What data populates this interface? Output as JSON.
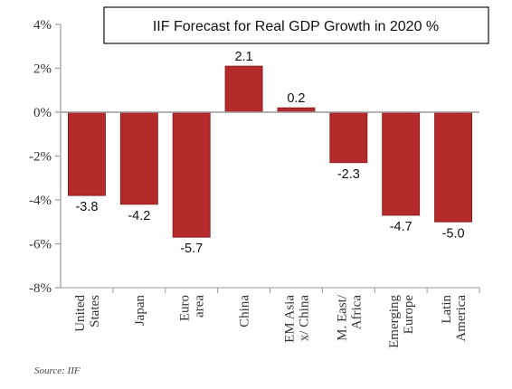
{
  "chart_data": {
    "type": "bar",
    "title": "IIF Forecast for Real GDP Growth in 2020 %",
    "categories": [
      [
        "United",
        "States"
      ],
      [
        "Japan"
      ],
      [
        "Euro",
        "area"
      ],
      [
        "China"
      ],
      [
        "EM Asia",
        "x/ China"
      ],
      [
        "M. East/",
        "Africa"
      ],
      [
        "Emerging",
        "Europe"
      ],
      [
        "Latin",
        "America"
      ]
    ],
    "values": [
      -3.8,
      -4.2,
      -5.7,
      2.1,
      0.2,
      -2.3,
      -4.7,
      -5.0
    ],
    "data_labels": [
      "-3.8",
      "-4.2",
      "-5.7",
      "2.1",
      "0.2",
      "-2.3",
      "-4.7",
      "-5.0"
    ],
    "ylim": [
      -8,
      4
    ],
    "yticks": [
      4,
      2,
      0,
      -2,
      -4,
      -6,
      -8
    ],
    "ytick_labels": [
      "4%",
      "2%",
      "0%",
      "-2%",
      "-4%",
      "-6%",
      "-8%"
    ],
    "bar_color": "#b52a2a",
    "bar_edge_color": "#7d1a1a",
    "axis_color": "#9a9a9a",
    "gridlines": false,
    "legend": "none",
    "source": "Source: IIF"
  }
}
